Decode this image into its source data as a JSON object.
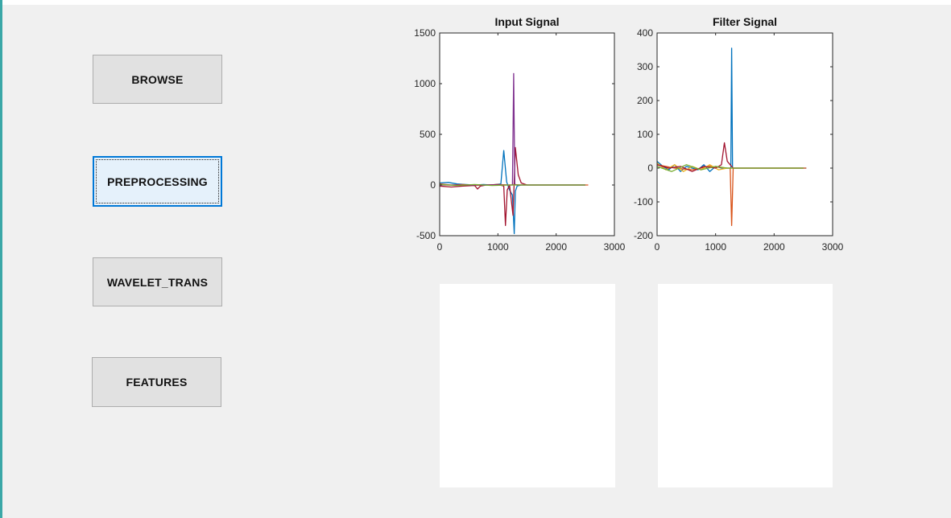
{
  "buttons": {
    "browse": "BROWSE",
    "preprocessing": "PREPROCESSING",
    "wavelet": "WAVELET_TRANS",
    "features": "FEATURES"
  },
  "plots": {
    "input_title": "Input Signal",
    "filter_title": "Filter Signal"
  },
  "colors": {
    "accent": "#0078d7",
    "series": [
      "#0072bd",
      "#d95319",
      "#edb120",
      "#7e2f8e",
      "#77ac30",
      "#4dbeee",
      "#a2142f"
    ]
  },
  "chart_data": [
    {
      "type": "line",
      "title": "Input Signal",
      "xlim": [
        0,
        3000
      ],
      "ylim": [
        -500,
        1500
      ],
      "xticks": [
        0,
        1000,
        2000,
        3000
      ],
      "yticks": [
        -500,
        0,
        500,
        1000,
        1500
      ],
      "grid": false,
      "series": [
        {
          "color": "#0072bd",
          "x": [
            0,
            150,
            300,
            450,
            600,
            750,
            900,
            1050,
            1100,
            1150,
            1200,
            1250,
            1280,
            1300,
            1330,
            1400,
            1500,
            2500
          ],
          "y": [
            20,
            25,
            10,
            5,
            0,
            5,
            0,
            10,
            340,
            30,
            -50,
            -100,
            -480,
            -60,
            -10,
            0,
            0,
            0
          ]
        },
        {
          "color": "#d95319",
          "x": [
            0,
            200,
            400,
            600,
            800,
            1000,
            1200,
            1300,
            1400,
            1600,
            2000,
            2550
          ],
          "y": [
            10,
            0,
            5,
            -5,
            0,
            5,
            0,
            2,
            0,
            0,
            0,
            0
          ]
        },
        {
          "color": "#a2142f",
          "x": [
            0,
            200,
            400,
            600,
            650,
            700,
            800,
            1000,
            1100,
            1130,
            1160,
            1200,
            1260,
            1300,
            1350,
            1400,
            1500,
            2500
          ],
          "y": [
            -10,
            -20,
            -10,
            -5,
            -40,
            -10,
            0,
            5,
            -10,
            -400,
            -50,
            0,
            -300,
            370,
            100,
            20,
            0,
            0
          ]
        },
        {
          "color": "#7e2f8e",
          "x": [
            0,
            500,
            1000,
            1250,
            1270,
            1290,
            1310,
            1400,
            2500
          ],
          "y": [
            0,
            0,
            0,
            0,
            1100,
            10,
            0,
            0,
            0
          ]
        },
        {
          "color": "#77ac30",
          "x": [
            0,
            300,
            600,
            900,
            1200,
            1500,
            2500
          ],
          "y": [
            5,
            -5,
            5,
            -5,
            0,
            0,
            0
          ]
        }
      ]
    },
    {
      "type": "line",
      "title": "Filter Signal",
      "xlim": [
        0,
        3000
      ],
      "ylim": [
        -200,
        400
      ],
      "xticks": [
        0,
        1000,
        2000,
        3000
      ],
      "yticks": [
        -200,
        -100,
        0,
        100,
        200,
        300,
        400
      ],
      "grid": false,
      "series": [
        {
          "color": "#0072bd",
          "x": [
            0,
            100,
            200,
            300,
            400,
            500,
            600,
            700,
            800,
            900,
            1000,
            1100,
            1200,
            1260,
            1275,
            1290,
            1350,
            2550
          ],
          "y": [
            20,
            5,
            -5,
            10,
            -10,
            5,
            0,
            -5,
            10,
            -10,
            5,
            0,
            0,
            0,
            355,
            0,
            0,
            0
          ]
        },
        {
          "color": "#d95319",
          "x": [
            0,
            300,
            600,
            900,
            1200,
            1250,
            1275,
            1300,
            1400,
            2550
          ],
          "y": [
            10,
            0,
            -5,
            5,
            0,
            0,
            -170,
            0,
            0,
            0
          ]
        },
        {
          "color": "#edb120",
          "x": [
            0,
            150,
            300,
            450,
            600,
            750,
            900,
            1050,
            1200,
            1400,
            2500
          ],
          "y": [
            15,
            -5,
            10,
            -10,
            5,
            -5,
            10,
            -5,
            0,
            0,
            0
          ]
        },
        {
          "color": "#a2142f",
          "x": [
            0,
            200,
            400,
            600,
            800,
            1000,
            1100,
            1150,
            1200,
            1250,
            1300,
            1400,
            2500
          ],
          "y": [
            10,
            0,
            5,
            -10,
            5,
            0,
            10,
            75,
            20,
            10,
            0,
            0,
            0
          ]
        },
        {
          "color": "#77ac30",
          "x": [
            0,
            250,
            500,
            750,
            1000,
            1200,
            1400,
            2500
          ],
          "y": [
            5,
            -10,
            10,
            -5,
            5,
            0,
            0,
            0
          ]
        }
      ]
    }
  ]
}
